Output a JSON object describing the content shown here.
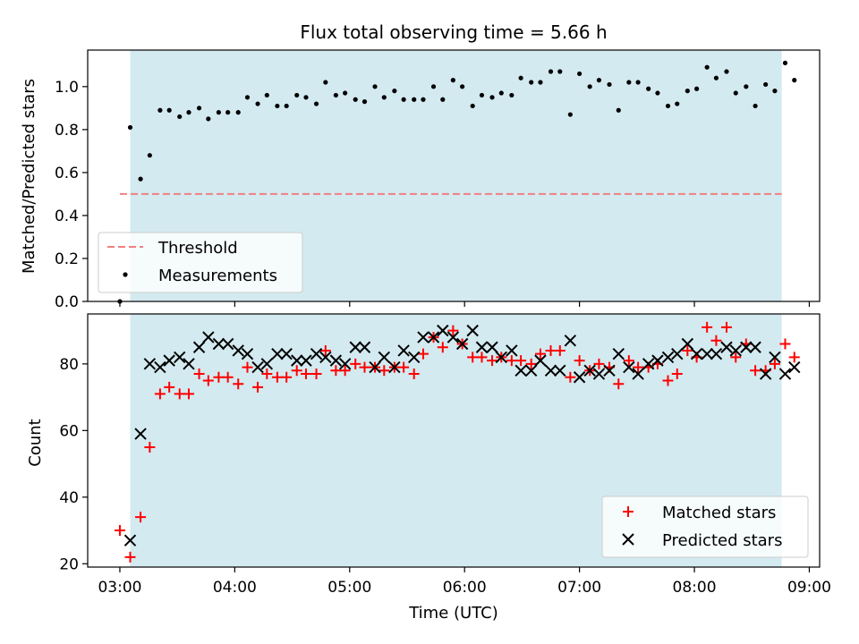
{
  "chart_data": [
    {
      "type": "scatter",
      "title": "Flux total observing time = 5.66 h",
      "xlabel": "",
      "ylabel": "Matched/Predicted stars",
      "ylim": [
        0,
        1.17
      ],
      "yticks": [
        "0.0",
        "0.2",
        "0.4",
        "0.6",
        "0.8",
        "1.0"
      ],
      "ytick_values": [
        0,
        0.2,
        0.4,
        0.6,
        0.8,
        1.0
      ],
      "grid": false,
      "legend_position": "bottom-left",
      "shaded_span": {
        "x_start_hours": 3.09,
        "x_end_hours": 8.76,
        "color": "#d3eaf0"
      },
      "threshold": {
        "name": "Threshold",
        "value": 0.5,
        "color": "#f08080"
      },
      "series": [
        {
          "name": "Measurements",
          "color": "#000000",
          "marker": "dot",
          "points": [
            [
              3.0,
              0.0
            ],
            [
              3.09,
              0.81
            ],
            [
              3.18,
              0.57
            ],
            [
              3.26,
              0.68
            ],
            [
              3.35,
              0.89
            ],
            [
              3.43,
              0.89
            ],
            [
              3.52,
              0.86
            ],
            [
              3.6,
              0.88
            ],
            [
              3.69,
              0.9
            ],
            [
              3.77,
              0.85
            ],
            [
              3.86,
              0.88
            ],
            [
              3.94,
              0.88
            ],
            [
              4.03,
              0.88
            ],
            [
              4.11,
              0.95
            ],
            [
              4.2,
              0.92
            ],
            [
              4.28,
              0.96
            ],
            [
              4.37,
              0.91
            ],
            [
              4.45,
              0.91
            ],
            [
              4.54,
              0.96
            ],
            [
              4.62,
              0.95
            ],
            [
              4.71,
              0.92
            ],
            [
              4.79,
              1.02
            ],
            [
              4.88,
              0.96
            ],
            [
              4.96,
              0.97
            ],
            [
              5.05,
              0.94
            ],
            [
              5.13,
              0.93
            ],
            [
              5.22,
              1.0
            ],
            [
              5.3,
              0.95
            ],
            [
              5.39,
              0.98
            ],
            [
              5.47,
              0.94
            ],
            [
              5.56,
              0.94
            ],
            [
              5.64,
              0.94
            ],
            [
              5.73,
              1.0
            ],
            [
              5.81,
              0.94
            ],
            [
              5.9,
              1.03
            ],
            [
              5.98,
              1.0
            ],
            [
              6.07,
              0.91
            ],
            [
              6.15,
              0.96
            ],
            [
              6.24,
              0.95
            ],
            [
              6.32,
              0.97
            ],
            [
              6.41,
              0.96
            ],
            [
              6.49,
              1.04
            ],
            [
              6.58,
              1.02
            ],
            [
              6.66,
              1.02
            ],
            [
              6.75,
              1.07
            ],
            [
              6.83,
              1.07
            ],
            [
              6.92,
              0.87
            ],
            [
              7.0,
              1.06
            ],
            [
              7.09,
              1.0
            ],
            [
              7.17,
              1.03
            ],
            [
              7.26,
              1.01
            ],
            [
              7.34,
              0.89
            ],
            [
              7.43,
              1.02
            ],
            [
              7.51,
              1.02
            ],
            [
              7.6,
              0.99
            ],
            [
              7.68,
              0.97
            ],
            [
              7.77,
              0.91
            ],
            [
              7.85,
              0.92
            ],
            [
              7.94,
              0.98
            ],
            [
              8.02,
              0.99
            ],
            [
              8.11,
              1.09
            ],
            [
              8.19,
              1.04
            ],
            [
              8.28,
              1.07
            ],
            [
              8.36,
              0.97
            ],
            [
              8.45,
              1.0
            ],
            [
              8.53,
              0.91
            ],
            [
              8.62,
              1.01
            ],
            [
              8.7,
              0.98
            ],
            [
              8.79,
              1.11
            ],
            [
              8.87,
              1.03
            ]
          ]
        }
      ],
      "legend": [
        {
          "label": "Threshold",
          "kind": "dashed-line",
          "color": "#f08080"
        },
        {
          "label": "Measurements",
          "kind": "dot",
          "color": "#000000"
        }
      ]
    },
    {
      "type": "scatter",
      "title": "",
      "xlabel": "Time (UTC)",
      "ylabel": "Count",
      "ylim": [
        19,
        95
      ],
      "yticks": [
        "20",
        "40",
        "60",
        "80"
      ],
      "ytick_values": [
        20,
        40,
        60,
        80
      ],
      "xlim_hours": [
        2.72,
        9.09
      ],
      "xticks": [
        "03:00",
        "04:00",
        "05:00",
        "06:00",
        "07:00",
        "08:00",
        "09:00"
      ],
      "xtick_hours": [
        3,
        4,
        5,
        6,
        7,
        8,
        9
      ],
      "grid": false,
      "legend_position": "bottom-right",
      "shaded_span": {
        "x_start_hours": 3.09,
        "x_end_hours": 8.76,
        "color": "#d3eaf0"
      },
      "series": [
        {
          "name": "Matched stars",
          "color": "#ff0000",
          "marker": "plus",
          "points": [
            [
              3.0,
              30
            ],
            [
              3.09,
              22
            ],
            [
              3.18,
              34
            ],
            [
              3.26,
              55
            ],
            [
              3.35,
              71
            ],
            [
              3.43,
              73
            ],
            [
              3.52,
              71
            ],
            [
              3.6,
              71
            ],
            [
              3.69,
              77
            ],
            [
              3.77,
              75
            ],
            [
              3.86,
              76
            ],
            [
              3.94,
              76
            ],
            [
              4.03,
              74
            ],
            [
              4.11,
              79
            ],
            [
              4.2,
              73
            ],
            [
              4.28,
              77
            ],
            [
              4.37,
              76
            ],
            [
              4.45,
              76
            ],
            [
              4.54,
              78
            ],
            [
              4.62,
              77
            ],
            [
              4.71,
              77
            ],
            [
              4.79,
              84
            ],
            [
              4.88,
              78
            ],
            [
              4.96,
              78
            ],
            [
              5.05,
              80
            ],
            [
              5.13,
              79
            ],
            [
              5.22,
              79
            ],
            [
              5.3,
              78
            ],
            [
              5.39,
              79
            ],
            [
              5.47,
              79
            ],
            [
              5.56,
              77
            ],
            [
              5.64,
              83
            ],
            [
              5.73,
              88
            ],
            [
              5.81,
              85
            ],
            [
              5.9,
              90
            ],
            [
              5.98,
              86
            ],
            [
              6.07,
              82
            ],
            [
              6.15,
              82
            ],
            [
              6.24,
              81
            ],
            [
              6.32,
              82
            ],
            [
              6.41,
              81
            ],
            [
              6.49,
              81
            ],
            [
              6.58,
              80
            ],
            [
              6.66,
              83
            ],
            [
              6.75,
              84
            ],
            [
              6.83,
              84
            ],
            [
              6.92,
              76
            ],
            [
              7.0,
              81
            ],
            [
              7.09,
              78
            ],
            [
              7.17,
              80
            ],
            [
              7.26,
              79
            ],
            [
              7.34,
              74
            ],
            [
              7.43,
              81
            ],
            [
              7.51,
              79
            ],
            [
              7.6,
              79
            ],
            [
              7.68,
              80
            ],
            [
              7.77,
              75
            ],
            [
              7.85,
              77
            ],
            [
              7.94,
              84
            ],
            [
              8.02,
              82
            ],
            [
              8.11,
              91
            ],
            [
              8.19,
              87
            ],
            [
              8.28,
              91
            ],
            [
              8.36,
              82
            ],
            [
              8.45,
              86
            ],
            [
              8.53,
              78
            ],
            [
              8.62,
              78
            ],
            [
              8.7,
              80
            ],
            [
              8.79,
              86
            ],
            [
              8.87,
              82
            ]
          ]
        },
        {
          "name": "Predicted stars",
          "color": "#000000",
          "marker": "cross",
          "points": [
            [
              3.09,
              27
            ],
            [
              3.18,
              59
            ],
            [
              3.26,
              80
            ],
            [
              3.35,
              79
            ],
            [
              3.43,
              81
            ],
            [
              3.52,
              82
            ],
            [
              3.6,
              80
            ],
            [
              3.69,
              85
            ],
            [
              3.77,
              88
            ],
            [
              3.86,
              86
            ],
            [
              3.94,
              86
            ],
            [
              4.03,
              84
            ],
            [
              4.11,
              83
            ],
            [
              4.2,
              79
            ],
            [
              4.28,
              80
            ],
            [
              4.37,
              83
            ],
            [
              4.45,
              83
            ],
            [
              4.54,
              81
            ],
            [
              4.62,
              81
            ],
            [
              4.71,
              83
            ],
            [
              4.79,
              82
            ],
            [
              4.88,
              81
            ],
            [
              4.96,
              80
            ],
            [
              5.05,
              85
            ],
            [
              5.13,
              85
            ],
            [
              5.22,
              79
            ],
            [
              5.3,
              82
            ],
            [
              5.39,
              79
            ],
            [
              5.47,
              84
            ],
            [
              5.56,
              82
            ],
            [
              5.64,
              88
            ],
            [
              5.73,
              88
            ],
            [
              5.81,
              90
            ],
            [
              5.9,
              88
            ],
            [
              5.98,
              86
            ],
            [
              6.07,
              90
            ],
            [
              6.15,
              85
            ],
            [
              6.24,
              85
            ],
            [
              6.32,
              82
            ],
            [
              6.41,
              84
            ],
            [
              6.49,
              78
            ],
            [
              6.58,
              78
            ],
            [
              6.66,
              81
            ],
            [
              6.75,
              78
            ],
            [
              6.83,
              78
            ],
            [
              6.92,
              87
            ],
            [
              7.0,
              76
            ],
            [
              7.09,
              78
            ],
            [
              7.17,
              77
            ],
            [
              7.26,
              78
            ],
            [
              7.34,
              83
            ],
            [
              7.43,
              79
            ],
            [
              7.51,
              77
            ],
            [
              7.6,
              80
            ],
            [
              7.68,
              81
            ],
            [
              7.77,
              82
            ],
            [
              7.85,
              83
            ],
            [
              7.94,
              86
            ],
            [
              8.02,
              83
            ],
            [
              8.11,
              83
            ],
            [
              8.19,
              83
            ],
            [
              8.28,
              85
            ],
            [
              8.36,
              84
            ],
            [
              8.45,
              85
            ],
            [
              8.53,
              85
            ],
            [
              8.62,
              77
            ],
            [
              8.7,
              82
            ],
            [
              8.79,
              77
            ],
            [
              8.87,
              79
            ]
          ]
        }
      ],
      "legend": [
        {
          "label": "Matched stars",
          "kind": "plus",
          "color": "#ff0000"
        },
        {
          "label": "Predicted stars",
          "kind": "cross",
          "color": "#000000"
        }
      ]
    }
  ]
}
